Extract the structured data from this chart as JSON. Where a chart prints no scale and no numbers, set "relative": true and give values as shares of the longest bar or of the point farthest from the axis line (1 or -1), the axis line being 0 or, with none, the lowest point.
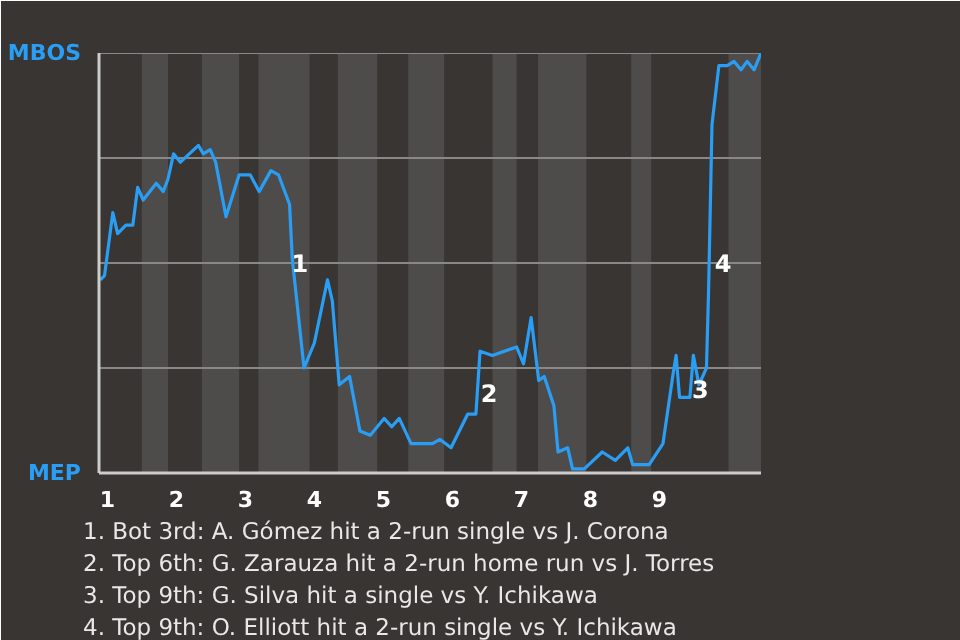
{
  "chart_data": {
    "type": "line",
    "relative": true,
    "x": [
      0.9,
      0.96,
      1.08,
      1.15,
      1.27,
      1.37,
      1.44,
      1.52,
      1.71,
      1.81,
      1.88,
      1.96,
      2.06,
      2.32,
      2.39,
      2.49,
      2.57,
      2.72,
      2.91,
      3.07,
      3.2,
      3.37,
      3.48,
      3.64,
      3.68,
      3.85,
      4.0,
      4.19,
      4.26,
      4.36,
      4.51,
      4.66,
      4.81,
      5.01,
      5.12,
      5.23,
      5.4,
      5.71,
      5.82,
      5.98,
      6.22,
      6.34,
      6.4,
      6.58,
      6.93,
      7.03,
      7.14,
      7.25,
      7.33,
      7.47,
      7.53,
      7.67,
      7.74,
      7.91,
      8.17,
      8.36,
      8.54,
      8.61,
      8.85,
      9.05,
      9.2,
      9.24,
      9.29,
      9.44,
      9.49,
      9.57,
      9.68,
      9.71,
      9.76,
      9.86,
      9.98,
      10.08,
      10.18,
      10.27,
      10.37,
      10.47
    ],
    "series": [
      {
        "color": "#2a9df4",
        "values": [
          0.46,
          0.47,
          0.62,
          0.57,
          0.59,
          0.59,
          0.68,
          0.65,
          0.69,
          0.67,
          0.7,
          0.76,
          0.74,
          0.78,
          0.76,
          0.77,
          0.74,
          0.61,
          0.71,
          0.71,
          0.67,
          0.72,
          0.71,
          0.64,
          0.51,
          0.25,
          0.31,
          0.46,
          0.41,
          0.21,
          0.23,
          0.1,
          0.09,
          0.13,
          0.11,
          0.13,
          0.07,
          0.07,
          0.08,
          0.06,
          0.14,
          0.14,
          0.29,
          0.28,
          0.3,
          0.26,
          0.37,
          0.22,
          0.23,
          0.16,
          0.05,
          0.06,
          0.01,
          0.01,
          0.05,
          0.03,
          0.06,
          0.02,
          0.02,
          0.07,
          0.24,
          0.28,
          0.18,
          0.18,
          0.28,
          0.21,
          0.25,
          0.43,
          0.83,
          0.97,
          0.97,
          0.98,
          0.96,
          0.98,
          0.96,
          1.0
        ]
      }
    ],
    "xlim": [
      0.88,
      10.47
    ],
    "xticks": [
      1,
      2,
      3,
      4,
      5,
      6,
      7,
      8,
      9
    ],
    "marker": "none",
    "line_style": "solid",
    "ref_lines": [
      {
        "axis": "y",
        "value": 0.25,
        "color": "#8a8886"
      },
      {
        "axis": "y",
        "value": 0.5,
        "color": "#8a8886"
      },
      {
        "axis": "y",
        "value": 0.75,
        "color": "#8a8886"
      },
      {
        "axis": "y",
        "value": 1,
        "color": "#8a8886"
      }
    ],
    "bands": [
      {
        "axis": "x",
        "from": 1.5,
        "to": 1.88,
        "color": "#4e4c4a"
      },
      {
        "axis": "x",
        "from": 2.37,
        "to": 2.91,
        "color": "#4e4c4a"
      },
      {
        "axis": "x",
        "from": 3.19,
        "to": 3.93,
        "color": "#4e4c4a"
      },
      {
        "axis": "x",
        "from": 4.34,
        "to": 4.91,
        "color": "#4e4c4a"
      },
      {
        "axis": "x",
        "from": 5.36,
        "to": 5.88,
        "color": "#4e4c4a"
      },
      {
        "axis": "x",
        "from": 6.58,
        "to": 6.93,
        "color": "#4e4c4a"
      },
      {
        "axis": "x",
        "from": 7.24,
        "to": 7.94,
        "color": "#4e4c4a"
      },
      {
        "axis": "x",
        "from": 8.59,
        "to": 8.88,
        "color": "#4e4c4a"
      },
      {
        "axis": "x",
        "from": 10.0,
        "to": 10.47,
        "color": "#4e4c4a"
      }
    ],
    "annotations": [
      "MBOS",
      "MEP",
      {
        "text": "1",
        "x": 3.79,
        "y": 0.5
      },
      {
        "text": "2",
        "x": 6.53,
        "y": 0.19
      },
      {
        "text": "3",
        "x": 9.59,
        "y": 0.2
      },
      {
        "text": "4",
        "x": 9.92,
        "y": 0.5
      },
      "1. Bot 3rd: A. Gómez hit a 2-run single vs J. Corona",
      "2. Top 6th: G. Zarauza hit a 2-run home run vs J. Torres",
      "3. Top 9th: G. Silva hit a single vs Y. Ichikawa",
      "4. Top 9th: O. Elliott hit a 2-run single vs Y. Ichikawa"
    ]
  }
}
